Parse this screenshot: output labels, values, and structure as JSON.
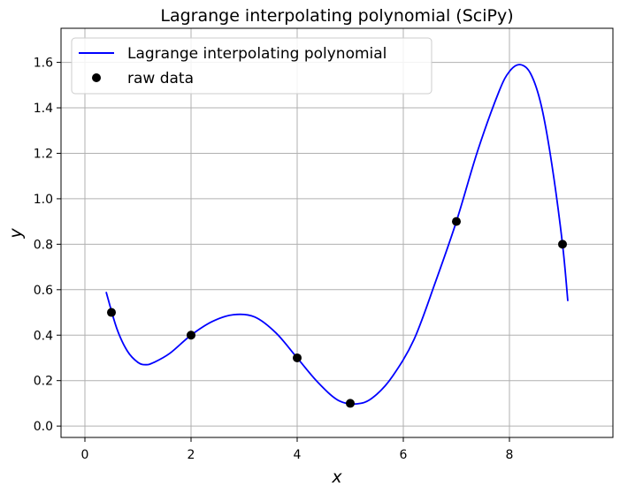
{
  "chart_data": {
    "type": "line",
    "title": "Lagrange interpolating polynomial (SciPy)",
    "xlabel": "x",
    "ylabel": "y",
    "xlim": [
      -0.45,
      9.95
    ],
    "ylim": [
      -0.05,
      1.75
    ],
    "x_ticks": [
      0,
      2,
      4,
      6,
      8
    ],
    "x_tick_labels": [
      "0",
      "2",
      "4",
      "6",
      "8"
    ],
    "y_ticks": [
      0.0,
      0.2,
      0.4,
      0.6,
      0.8,
      1.0,
      1.2,
      1.4,
      1.6
    ],
    "y_tick_labels": [
      "0.0",
      "0.2",
      "0.4",
      "0.6",
      "0.8",
      "1.0",
      "1.2",
      "1.4",
      "1.6"
    ],
    "grid": true,
    "legend_position": "top-left",
    "series": [
      {
        "name": "Lagrange interpolating polynomial",
        "kind": "line",
        "color": "#0000ff",
        "x": [
          0.4,
          0.6,
          0.8,
          1.0,
          1.15,
          1.3,
          1.6,
          2.0,
          2.4,
          2.8,
          3.2,
          3.6,
          4.0,
          4.4,
          4.8,
          5.2,
          5.5,
          5.8,
          6.2,
          6.6,
          7.0,
          7.4,
          7.8,
          8.0,
          8.2,
          8.4,
          8.6,
          8.8,
          9.0,
          9.1
        ],
        "y": [
          0.59,
          0.43,
          0.33,
          0.28,
          0.27,
          0.28,
          0.32,
          0.4,
          0.46,
          0.49,
          0.48,
          0.41,
          0.3,
          0.19,
          0.11,
          0.1,
          0.14,
          0.22,
          0.38,
          0.63,
          0.9,
          1.21,
          1.47,
          1.56,
          1.59,
          1.55,
          1.41,
          1.15,
          0.8,
          0.55
        ]
      },
      {
        "name": "raw data",
        "kind": "markers",
        "color": "#000000",
        "x": [
          0.5,
          2,
          4,
          5,
          7,
          9
        ],
        "y": [
          0.5,
          0.4,
          0.3,
          0.1,
          0.9,
          0.8
        ]
      }
    ]
  }
}
